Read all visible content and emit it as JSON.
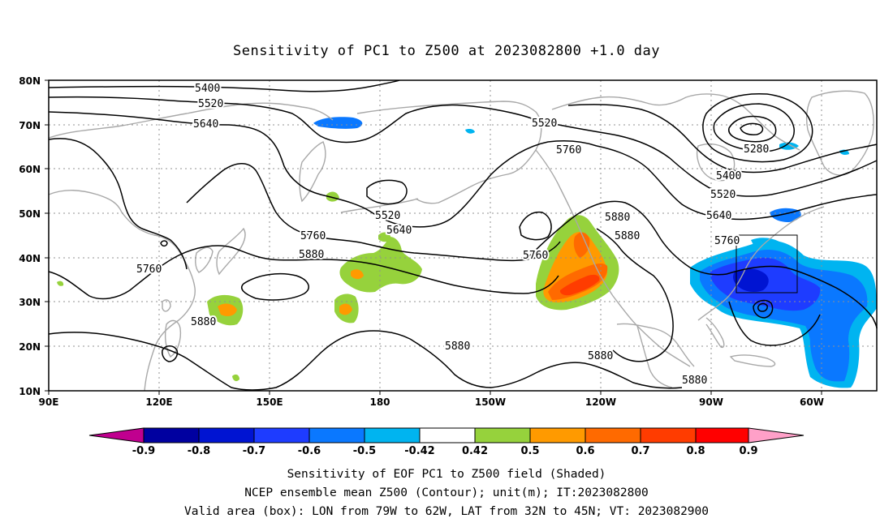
{
  "title": "Sensitivity of PC1 to Z500 at 2023082800 +1.0 day",
  "map": {
    "lat_labels": [
      "80N",
      "70N",
      "60N",
      "50N",
      "40N",
      "30N",
      "20N",
      "10N"
    ],
    "lon_labels": [
      "90E",
      "120E",
      "150E",
      "180",
      "150W",
      "120W",
      "90W",
      "60W"
    ],
    "contour_labels": [
      "5400",
      "5520",
      "5640",
      "5520",
      "5760",
      "5280",
      "5400",
      "5520",
      "5640",
      "5760",
      "5880",
      "5880",
      "5520",
      "5640",
      "5760",
      "5880",
      "5760",
      "5760",
      "5880",
      "5880",
      "5880",
      "5880"
    ],
    "valid_box": {
      "lon_from": "79W",
      "lon_to": "62W",
      "lat_from": "32N",
      "lat_to": "45N"
    }
  },
  "colorbar": {
    "labels": [
      "-0.9",
      "-0.8",
      "-0.7",
      "-0.6",
      "-0.5",
      "-0.42",
      "0.42",
      "0.5",
      "0.6",
      "0.7",
      "0.8",
      "0.9"
    ],
    "colors": [
      "#c0008f",
      "#0000a0",
      "#0014d2",
      "#1e3cff",
      "#0a78ff",
      "#00b4f0",
      "#00d2ff",
      "#ffffff",
      "#96d23c",
      "#ff9a00",
      "#ff6a00",
      "#ff3c00",
      "#ff0000",
      "#ffa0c8"
    ]
  },
  "caption": {
    "line1": "Sensitivity of EOF PC1 to Z500 field (Shaded)",
    "line2": "NCEP ensemble mean Z500 (Contour); unit(m); IT:2023082800",
    "line3": "Valid area (box): LON from 79W to 62W, LAT from 32N to 45N; VT: 2023082900"
  },
  "colors": {
    "coast": "#a8a8a8",
    "grid": "#909090",
    "contour": "#000000"
  }
}
